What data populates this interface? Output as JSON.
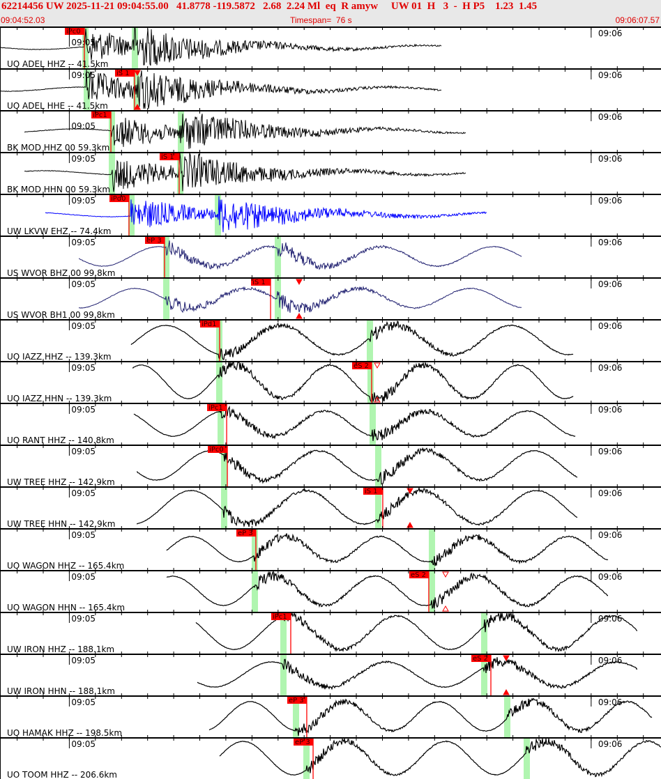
{
  "header": {
    "event_line": "62214456 UW 2025-11-21 09:04:55.00   41.8778 -119.5872   2.68  2.24 Ml  eq  R amyw     UW 01  H   3  -  H P5    1.23  1.45",
    "start_time": "09:04:52.03",
    "timespan": "Timespan=  76 s",
    "end_time": "09:06:07.57"
  },
  "time_axis": {
    "minute_labels": [
      "09:05",
      "09:06"
    ]
  },
  "colors": {
    "pick": "#ff0000",
    "predicted": "#b0f5b0",
    "trace": "#000000",
    "trace_blue": "#0000ff",
    "trace_navy": "#202070",
    "header_text": "#e00000"
  },
  "traces": [
    {
      "label": "UO ADEL HHZ -- 41.5km",
      "pick": "iPc0",
      "pick_time": "09:05:01.73",
      "color": "#000000"
    },
    {
      "label": "UO ADEL HHE -- 41.5km",
      "pick": "iS 1",
      "pick_time": "09:05:07.50",
      "color": "#000000",
      "marker": "filled"
    },
    {
      "label": "BK MOD HHZ 00 59.3km",
      "pick": "iPc1",
      "pick_time": "09:05:04.78",
      "color": "#000000"
    },
    {
      "label": "BK MOD HHN 00 59.3km",
      "pick": "iS 1",
      "pick_time": "09:05:12.63",
      "color": "#000000",
      "marker": "filled"
    },
    {
      "label": "UW LKVW EHZ -- 74.4km",
      "pick": "iPd0",
      "pick_time": "09:05:06.86",
      "color": "#0000ff"
    },
    {
      "label": "US WVOR BHZ 00 99.8km",
      "pick": "eP 3",
      "pick_time": "09:05:10.95",
      "color": "#202070"
    },
    {
      "label": "US WVOR BH1 00 99.8km",
      "pick": "iS 1",
      "pick_time": "09:05:23.14",
      "color": "#202070",
      "marker": "filled"
    },
    {
      "label": "UO IAZZ HHZ -- 139.3km",
      "pick": "iPd1",
      "pick_time": "09:05:17.28",
      "color": "#000000"
    },
    {
      "label": "UO IAZZ HHN -- 139.3km",
      "pick": "eS 2",
      "pick_time": "09:05:34.76",
      "color": "#000000",
      "marker": "hollow"
    },
    {
      "label": "UO RANT HHZ -- 140.8km",
      "pick": "iPc1",
      "pick_time": "09:05:18.09",
      "color": "#000000"
    },
    {
      "label": "UW TREE HHZ -- 142.9km",
      "pick": "iPc0",
      "pick_time": "09:05:18.17",
      "color": "#000000"
    },
    {
      "label": "UW TREE HHN -- 142.9km",
      "pick": "iS 1",
      "pick_time": "09:05:36.04",
      "color": "#000000",
      "marker": "filled"
    },
    {
      "label": "UO WAGON HHZ -- 165.4km",
      "pick": "eP 3",
      "pick_time": "09:05:21.45",
      "color": "#000000"
    },
    {
      "label": "UO WAGON HHN -- 165.4km",
      "pick": "eS 2",
      "pick_time": "09:05:41.33",
      "color": "#000000",
      "marker": "hollow"
    },
    {
      "label": "UW IRON HHZ -- 188.1km",
      "pick": "iPc1",
      "pick_time": "09:05:25.46",
      "color": "#000000"
    },
    {
      "label": "UW IRON HHN -- 188.1km",
      "pick": "eS 2",
      "pick_time": "09:05:48.47",
      "color": "#000000",
      "marker": "filled"
    },
    {
      "label": "UO HAMAK HHZ -- 198.5km",
      "pick": "eP 3",
      "pick_time": "09:05:27.30",
      "color": "#000000"
    },
    {
      "label": "UO TOOM HHZ -- 206.6km",
      "pick": "eP 3",
      "pick_time": "09:05:28.03",
      "color": "#000000"
    }
  ]
}
